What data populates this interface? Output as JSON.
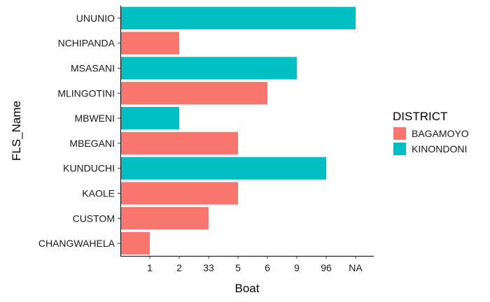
{
  "chart_data": {
    "type": "bar",
    "orientation": "horizontal",
    "xlabel": "Boat",
    "ylabel": "FLS_Name",
    "x_categories": [
      "1",
      "2",
      "33",
      "5",
      "6",
      "9",
      "96",
      "NA"
    ],
    "categories": [
      "UNUNIO",
      "NCHIPANDA",
      "MSASANI",
      "MLINGOTINI",
      "MBWENI",
      "MBEGANI",
      "KUNDUCHI",
      "KAOLE",
      "CUSTOM",
      "CHANGWAHELA"
    ],
    "values": [
      "NA",
      "2",
      "9",
      "6",
      "2",
      "5",
      "96",
      "5",
      "33",
      "1"
    ],
    "groups": [
      "KINONDONI",
      "BAGAMOYO",
      "KINONDONI",
      "BAGAMOYO",
      "KINONDONI",
      "BAGAMOYO",
      "KINONDONI",
      "BAGAMOYO",
      "BAGAMOYO",
      "BAGAMOYO"
    ],
    "legend": {
      "title": "DISTRICT",
      "position": "right",
      "entries": [
        {
          "name": "BAGAMOYO",
          "color": "#F8766D"
        },
        {
          "name": "KINONDONI",
          "color": "#00BFC4"
        }
      ]
    },
    "grid": false
  }
}
